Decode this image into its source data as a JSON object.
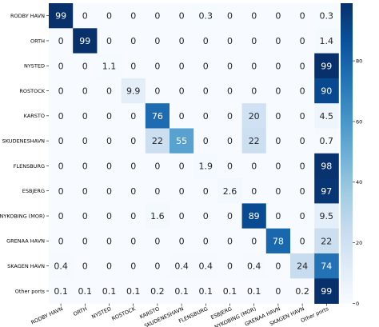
{
  "chart_data": {
    "type": "heatmap",
    "title": "",
    "xlabel": "",
    "ylabel": "",
    "rows": [
      "RODBY HAVN",
      "ORTH",
      "NYSTED",
      "ROSTOCK",
      "KARSTO",
      "SKUDENESHAVN",
      "FLENSBURG",
      "ESBJERG",
      "NYKOBING (MOR)",
      "GRENAA HAVN",
      "SKAGEN HAVN",
      "Other ports"
    ],
    "columns": [
      "RODBY HAVN",
      "ORTH",
      "NYSTED",
      "ROSTOCK",
      "KARSTO",
      "SKUDENESHAVN",
      "FLENSBURG",
      "ESBJERG",
      "NYKOBING (MOR)",
      "GRENAA HAVN",
      "SKAGEN HAVN",
      "Other ports"
    ],
    "values": [
      [
        99,
        0,
        0,
        0,
        0,
        0,
        0.3,
        0,
        0,
        0,
        0,
        0.3
      ],
      [
        0,
        99,
        0,
        0,
        0,
        0,
        0,
        0,
        0,
        0,
        0,
        1.4
      ],
      [
        0,
        0,
        1.1,
        0,
        0,
        0,
        0,
        0,
        0,
        0,
        0,
        99
      ],
      [
        0,
        0,
        0,
        9.9,
        0,
        0,
        0,
        0,
        0,
        0,
        0,
        90
      ],
      [
        0,
        0,
        0,
        0,
        76,
        0,
        0,
        0,
        20,
        0,
        0,
        4.5
      ],
      [
        0,
        0,
        0,
        0,
        22,
        55,
        0,
        0,
        22,
        0,
        0,
        0.7
      ],
      [
        0,
        0,
        0,
        0,
        0,
        0,
        1.9,
        0,
        0,
        0,
        0,
        98
      ],
      [
        0,
        0,
        0,
        0,
        0,
        0,
        0,
        2.6,
        0,
        0,
        0,
        97
      ],
      [
        0,
        0,
        0,
        0,
        1.6,
        0,
        0,
        0,
        89,
        0,
        0,
        9.5
      ],
      [
        0,
        0,
        0,
        0,
        0,
        0,
        0,
        0,
        0,
        78,
        0,
        22
      ],
      [
        0.4,
        0,
        0,
        0,
        0,
        0.4,
        0.4,
        0,
        0.4,
        0,
        24,
        74
      ],
      [
        0.1,
        0.1,
        0.1,
        0.1,
        0.2,
        0.1,
        0.1,
        0.1,
        0.1,
        0,
        0.2,
        99
      ]
    ],
    "colorbar": {
      "min": 0,
      "max": 99,
      "ticks": [
        0,
        20,
        40,
        60,
        80
      ],
      "colormap": "Blues",
      "low_color": "#f7fbff",
      "high_color": "#08306b"
    }
  }
}
